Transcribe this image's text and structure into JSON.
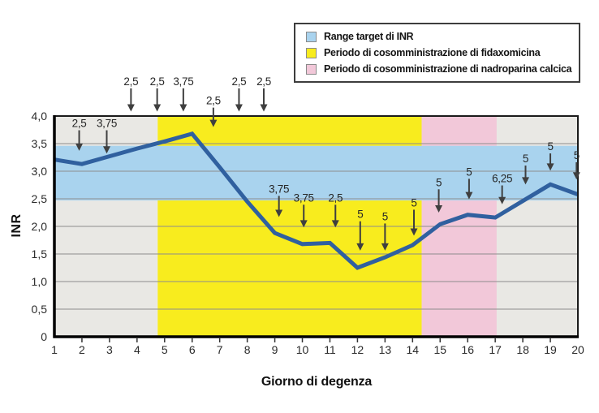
{
  "legend": {
    "items": [
      {
        "label": "Range target di INR",
        "color": "#a9d3ee"
      },
      {
        "label": "Periodo di cosomministrazione di fidaxomicina",
        "color": "#f8ec1e"
      },
      {
        "label": "Periodo di cosomministrazione di nadroparina calcica",
        "color": "#f2c8d9"
      }
    ]
  },
  "chart_data": {
    "type": "line",
    "title": "",
    "xlabel": "Giorno di degenza",
    "ylabel": "INR",
    "xlim": [
      1,
      20
    ],
    "ylim": [
      0,
      4
    ],
    "grid": "horizontal",
    "legend_position": "top-right",
    "x": [
      1,
      2,
      3,
      4,
      5,
      6,
      7,
      8,
      9,
      10,
      11,
      12,
      13,
      14,
      15,
      16,
      17,
      18,
      19,
      20
    ],
    "x_tick_labels": [
      "1",
      "2",
      "3",
      "4",
      "5",
      "6",
      "7",
      "8",
      "9",
      "10",
      "11",
      "12",
      "13",
      "14",
      "15",
      "16",
      "17",
      "18",
      "19",
      "20"
    ],
    "y_ticks": [
      0,
      0.5,
      1.0,
      1.5,
      2.0,
      2.5,
      3.0,
      3.5,
      4.0
    ],
    "y_tick_labels": [
      "0",
      "0,5",
      "1,0",
      "1,5",
      "2,0",
      "2,5",
      "3,0",
      "3,5",
      "4,0"
    ],
    "series": [
      {
        "name": "INR",
        "color": "#30609f",
        "values": [
          3.21,
          3.13,
          3.27,
          3.41,
          3.54,
          3.68,
          3.07,
          2.45,
          1.88,
          1.68,
          1.7,
          1.25,
          1.44,
          1.66,
          2.04,
          2.21,
          2.16,
          2.46,
          2.76,
          2.58
        ]
      }
    ],
    "target_band": {
      "label": "Range target di INR",
      "low": 2.47,
      "high": 3.46,
      "color": "#a9d3ee"
    },
    "periods": [
      {
        "name": "fidaxomicina",
        "label": "Periodo di cosomministrazione di fidaxomicina",
        "start_day": 4.75,
        "end_day": 14.33,
        "color": "#f8ec1e"
      },
      {
        "name": "nadroparina-calcica",
        "label": "Periodo di cosomministrazione di nadroparina calcica",
        "start_day": 14.33,
        "end_day": 17.05,
        "color": "#f2c8d9"
      }
    ],
    "dose_annotations": [
      {
        "day": 1.9,
        "label": "2,5",
        "label_inr": 3.86,
        "tip_inr": 3.37
      },
      {
        "day": 2.9,
        "label": "3,75",
        "label_inr": 3.86,
        "tip_inr": 3.32
      },
      {
        "day": 3.78,
        "label": "2,5",
        "label_inr": 4.62,
        "tip_inr": 4.08
      },
      {
        "day": 4.73,
        "label": "2,5",
        "label_inr": 4.62,
        "tip_inr": 4.08
      },
      {
        "day": 5.68,
        "label": "3,75",
        "label_inr": 4.62,
        "tip_inr": 4.08
      },
      {
        "day": 6.77,
        "label": "2,5",
        "label_inr": 4.27,
        "tip_inr": 3.8
      },
      {
        "day": 7.7,
        "label": "2,5",
        "label_inr": 4.62,
        "tip_inr": 4.08
      },
      {
        "day": 8.6,
        "label": "2,5",
        "label_inr": 4.62,
        "tip_inr": 4.08
      },
      {
        "day": 9.15,
        "label": "3,75",
        "label_inr": 2.67,
        "tip_inr": 2.17
      },
      {
        "day": 10.05,
        "label": "3,75",
        "label_inr": 2.51,
        "tip_inr": 1.98
      },
      {
        "day": 11.2,
        "label": "2,5",
        "label_inr": 2.51,
        "tip_inr": 1.98
      },
      {
        "day": 12.1,
        "label": "5",
        "label_inr": 2.21,
        "tip_inr": 1.56
      },
      {
        "day": 13.0,
        "label": "5",
        "label_inr": 2.17,
        "tip_inr": 1.56
      },
      {
        "day": 14.05,
        "label": "5",
        "label_inr": 2.42,
        "tip_inr": 1.83
      },
      {
        "day": 14.95,
        "label": "5",
        "label_inr": 2.79,
        "tip_inr": 2.25
      },
      {
        "day": 16.05,
        "label": "5",
        "label_inr": 2.98,
        "tip_inr": 2.49
      },
      {
        "day": 17.25,
        "label": "6,25",
        "label_inr": 2.86,
        "tip_inr": 2.4
      },
      {
        "day": 18.1,
        "label": "5",
        "label_inr": 3.22,
        "tip_inr": 2.76
      },
      {
        "day": 19.0,
        "label": "5",
        "label_inr": 3.44,
        "tip_inr": 3.01
      },
      {
        "day": 19.95,
        "label": "5",
        "label_inr": 3.28,
        "tip_inr": 2.85
      }
    ]
  }
}
